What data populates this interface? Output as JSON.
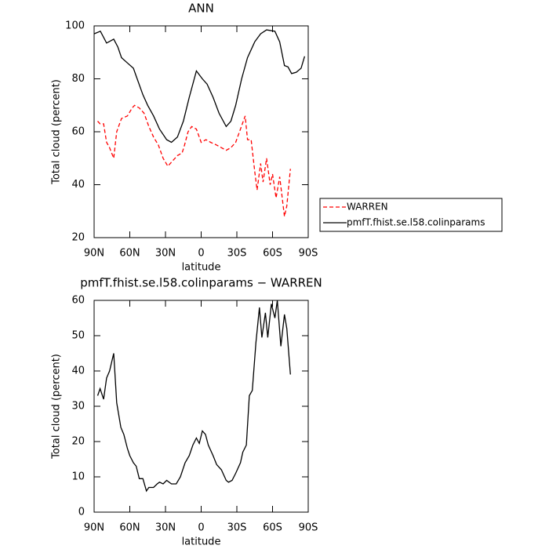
{
  "chart_data": [
    {
      "type": "line",
      "title": "ANN",
      "x_label": "latitude",
      "y_label": "Total cloud (percent)",
      "xlim": [
        90,
        -90
      ],
      "xticks": [
        {
          "value": 90,
          "label": "90N"
        },
        {
          "value": 60,
          "label": "60N"
        },
        {
          "value": 30,
          "label": "30N"
        },
        0,
        {
          "value": -30,
          "label": "30S"
        },
        {
          "value": -60,
          "label": "60S"
        },
        {
          "value": -90,
          "label": "90S"
        }
      ],
      "ylim": [
        20,
        100
      ],
      "yticks": [
        20,
        40,
        60,
        80,
        100
      ],
      "legend": "right",
      "series": [
        {
          "name": "WARREN",
          "color": "#ff0000",
          "dash": true,
          "x": [
            87,
            85,
            82,
            79.5,
            77,
            73.5,
            71,
            67,
            62,
            58,
            56,
            52,
            48,
            44,
            40,
            36,
            32,
            28,
            24,
            20,
            16,
            14,
            11,
            8,
            4,
            0,
            -4,
            -8,
            -13,
            -17,
            -21,
            -25,
            -29,
            -33,
            -37,
            -39,
            -42,
            -45,
            -47,
            -50,
            -52,
            -55,
            -58,
            -60,
            -63,
            -66,
            -70,
            -72,
            -75
          ],
          "values": [
            64,
            63,
            63,
            56,
            54,
            50,
            60,
            65,
            66,
            69,
            70,
            69,
            67,
            62,
            58,
            55,
            50,
            47,
            49,
            51,
            52,
            55,
            60,
            62,
            61,
            56,
            57,
            56,
            55,
            54,
            53,
            54,
            56,
            61,
            66,
            57,
            57,
            45,
            38,
            48,
            41,
            50,
            40,
            44,
            35,
            43,
            28,
            32,
            46
          ]
        },
        {
          "name": "pmfT.fhist.se.l58.colinparams",
          "color": "#000000",
          "dash": false,
          "x": [
            90,
            84.7,
            79.5,
            73.5,
            70,
            67,
            62,
            57,
            53,
            49,
            45,
            40,
            35,
            29,
            25,
            20,
            15,
            10,
            4,
            -1,
            -5,
            -10,
            -15,
            -21,
            -25,
            -29,
            -34,
            -39,
            -45,
            -50,
            -55,
            -62,
            -66,
            -70,
            -73,
            -76,
            -80,
            -84,
            -87
          ],
          "values": [
            97,
            98,
            93.5,
            95,
            92,
            88,
            86,
            84,
            79,
            74,
            70,
            66,
            61,
            57,
            56,
            58,
            64,
            73,
            83,
            80,
            78,
            73,
            67,
            62,
            64,
            70,
            80,
            88,
            94,
            97,
            98.5,
            98,
            94,
            85,
            84.5,
            82,
            82.5,
            84,
            88.5
          ]
        }
      ]
    },
    {
      "type": "line",
      "title": "pmfT.fhist.se.l58.colinparams − WARREN",
      "x_label": "latitude",
      "y_label": "Total cloud (percent)",
      "xlim": [
        90,
        -90
      ],
      "xticks": [
        {
          "value": 90,
          "label": "90N"
        },
        {
          "value": 60,
          "label": "60N"
        },
        {
          "value": 30,
          "label": "30N"
        },
        0,
        {
          "value": -30,
          "label": "30S"
        },
        {
          "value": -60,
          "label": "60S"
        },
        {
          "value": -90,
          "label": "90S"
        }
      ],
      "ylim": [
        0,
        60
      ],
      "yticks": [
        0,
        10,
        20,
        30,
        40,
        50,
        60
      ],
      "series": [
        {
          "color": "#000000",
          "dash": false,
          "x": [
            87,
            85,
            82,
            79.5,
            77,
            73.5,
            71,
            67.5,
            65,
            62,
            60,
            57,
            54.6,
            52,
            49,
            46,
            44,
            40,
            37,
            35,
            32,
            29,
            25,
            21,
            17.5,
            13.5,
            10,
            7,
            4,
            1.6,
            -1,
            -3.6,
            -6,
            -10,
            -13,
            -17,
            -21,
            -23,
            -26,
            -29,
            -33,
            -35,
            -38,
            -40.5,
            -43,
            -46,
            -49,
            -51,
            -54,
            -56,
            -59,
            -62,
            -64,
            -67,
            -70,
            -72,
            -75
          ],
          "values": [
            33,
            35,
            32,
            38,
            40,
            45,
            31,
            24,
            22,
            18,
            16,
            14,
            13,
            9.5,
            9.5,
            6,
            7,
            7,
            8,
            8.5,
            8,
            9,
            8,
            8,
            10,
            14,
            16,
            19,
            21,
            19.5,
            23,
            22,
            19,
            16,
            13.5,
            12,
            9,
            8.5,
            9,
            11,
            14,
            17,
            19,
            33,
            34.5,
            48,
            58,
            49.5,
            56.5,
            49.5,
            59,
            55,
            60,
            47,
            56,
            52,
            39
          ]
        }
      ]
    }
  ]
}
